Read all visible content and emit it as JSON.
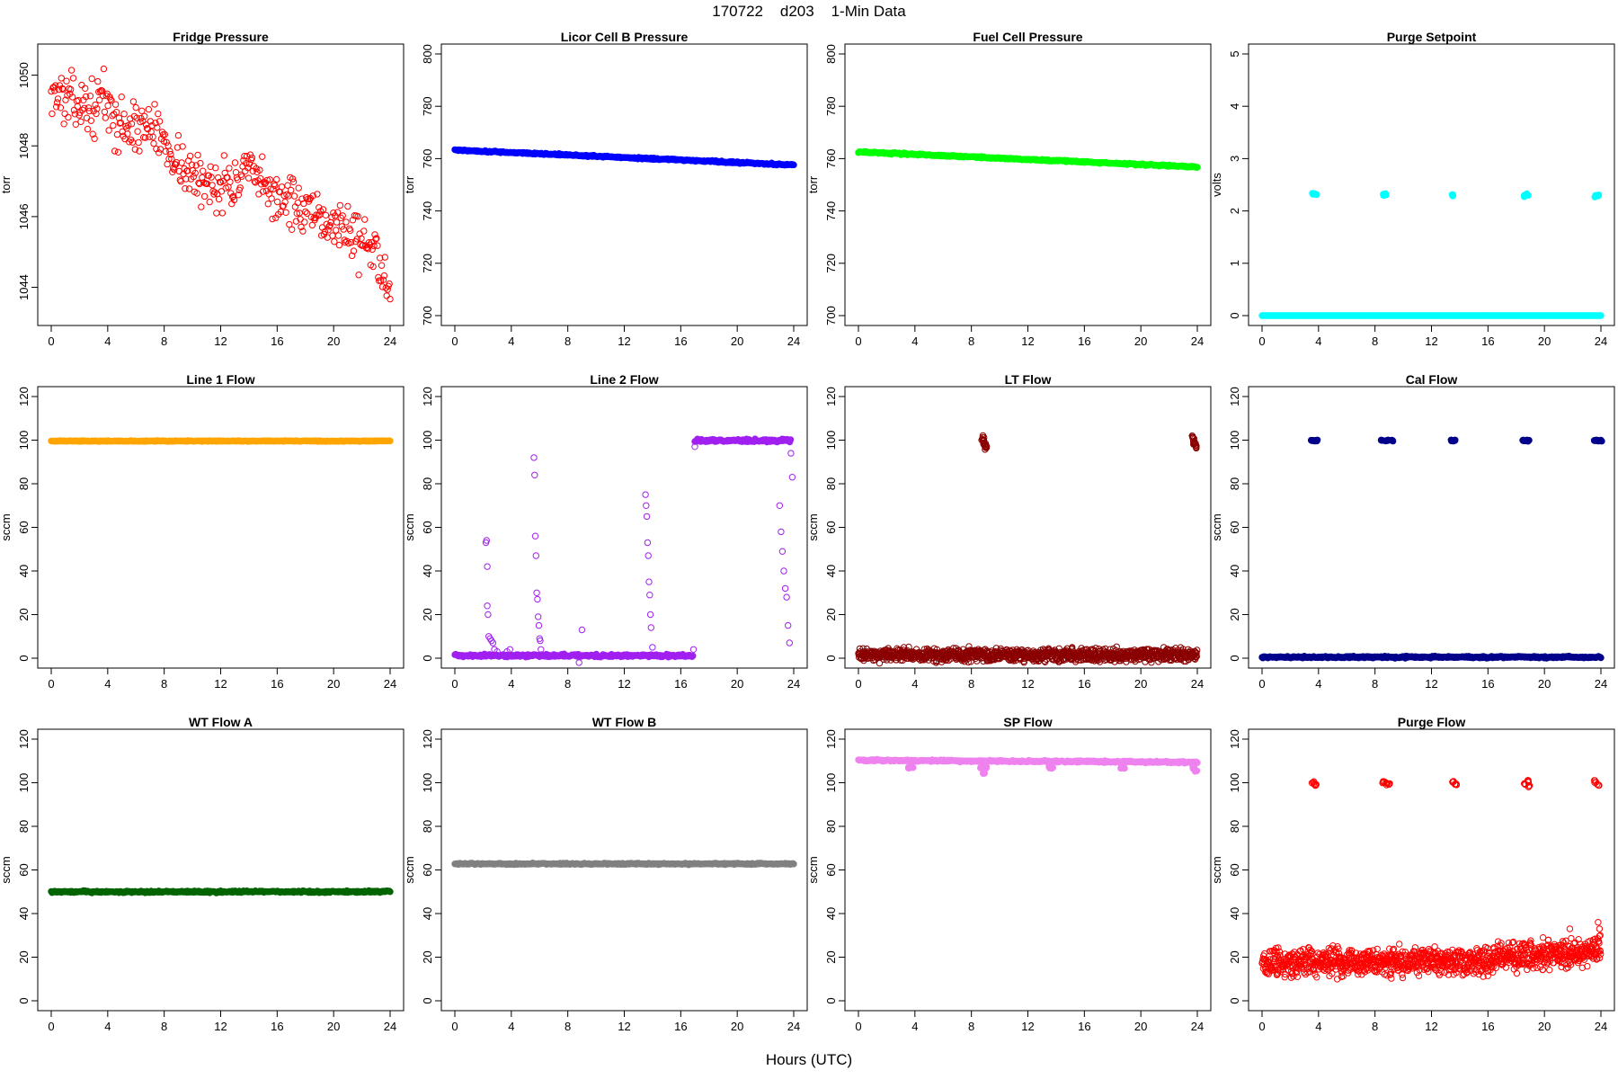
{
  "page": {
    "title": "170722    d203    1-Min Data",
    "x_axis_caption": "Hours (UTC)"
  },
  "chart_data": [
    {
      "type": "scatter",
      "title": "Fridge Pressure",
      "ylabel": "torr",
      "color": "#ff0000",
      "fill": false,
      "xlim": [
        0,
        24
      ],
      "ylim": [
        1043.2,
        1050.6
      ],
      "x_ticks": [
        0,
        4,
        8,
        12,
        16,
        20,
        24
      ],
      "y_ticks": [
        1044,
        1046,
        1048,
        1050
      ],
      "series": [
        {
          "kind": "trend",
          "noise": 0.35,
          "x": [
            0,
            1,
            2,
            3,
            3.8,
            4,
            5,
            6,
            7,
            8,
            9,
            10,
            11,
            12,
            13,
            14,
            15,
            16,
            17,
            18,
            19,
            20,
            21,
            22,
            23,
            24
          ],
          "y": [
            1049.6,
            1049.3,
            1049.2,
            1049.0,
            1049.6,
            1048.9,
            1048.6,
            1048.5,
            1048.6,
            1048.1,
            1047.6,
            1047.1,
            1046.9,
            1047.0,
            1046.9,
            1047.3,
            1046.8,
            1046.6,
            1046.4,
            1046.1,
            1045.8,
            1045.9,
            1045.6,
            1045.3,
            1044.9,
            1044.2
          ]
        }
      ]
    },
    {
      "type": "scatter",
      "title": "Licor Cell B Pressure",
      "ylabel": "torr",
      "color": "#0000ff",
      "fill": true,
      "xlim": [
        0,
        24
      ],
      "ylim": [
        700,
        800
      ],
      "x_ticks": [
        0,
        4,
        8,
        12,
        16,
        20,
        24
      ],
      "y_ticks": [
        700,
        720,
        740,
        760,
        780,
        800
      ],
      "series": [
        {
          "kind": "trend",
          "noise": 0.15,
          "x": [
            0,
            24
          ],
          "y": [
            763.3,
            757.6
          ]
        }
      ]
    },
    {
      "type": "scatter",
      "title": "Fuel Cell Pressure",
      "ylabel": "torr",
      "color": "#00ff00",
      "fill": true,
      "xlim": [
        0,
        24
      ],
      "ylim": [
        700,
        800
      ],
      "x_ticks": [
        0,
        4,
        8,
        12,
        16,
        20,
        24
      ],
      "y_ticks": [
        700,
        720,
        740,
        760,
        780,
        800
      ],
      "series": [
        {
          "kind": "trend",
          "noise": 0.15,
          "x": [
            0,
            24
          ],
          "y": [
            762.6,
            756.8
          ]
        }
      ]
    },
    {
      "type": "scatter",
      "title": "Purge Setpoint",
      "ylabel": "volts",
      "color": "#00ffff",
      "fill": true,
      "xlim": [
        0,
        24
      ],
      "ylim": [
        0,
        5
      ],
      "x_ticks": [
        0,
        4,
        8,
        12,
        16,
        20,
        24
      ],
      "y_ticks": [
        0,
        1,
        2,
        3,
        4,
        5
      ],
      "series": [
        {
          "kind": "trend",
          "noise": 0,
          "x": [
            0,
            24
          ],
          "y": [
            0,
            0
          ]
        },
        {
          "kind": "cluster",
          "spread": 0.02,
          "x": [
            3.6,
            3.8,
            8.6,
            8.8,
            13.5,
            18.6,
            18.8,
            23.6,
            23.8
          ],
          "y": [
            2.33,
            2.32,
            2.31,
            2.32,
            2.3,
            2.29,
            2.31,
            2.28,
            2.29
          ]
        }
      ]
    },
    {
      "type": "scatter",
      "title": "Line 1 Flow",
      "ylabel": "sccm",
      "color": "#ffa500",
      "fill": true,
      "xlim": [
        0,
        24
      ],
      "ylim": [
        0,
        120
      ],
      "x_ticks": [
        0,
        4,
        8,
        12,
        16,
        20,
        24
      ],
      "y_ticks": [
        0,
        20,
        40,
        60,
        80,
        100,
        120
      ],
      "series": [
        {
          "kind": "trend",
          "noise": 0.1,
          "x": [
            0,
            24
          ],
          "y": [
            99.6,
            99.6
          ]
        }
      ]
    },
    {
      "type": "scatter",
      "title": "Line 2 Flow",
      "ylabel": "sccm",
      "color": "#a020f0",
      "fill": false,
      "xlim": [
        0,
        24
      ],
      "ylim": [
        0,
        120
      ],
      "x_ticks": [
        0,
        4,
        8,
        12,
        16,
        20,
        24
      ],
      "y_ticks": [
        0,
        20,
        40,
        60,
        80,
        100,
        120
      ],
      "series": [
        {
          "kind": "trend",
          "noise": 0.3,
          "fill": true,
          "x": [
            0,
            16.9
          ],
          "y": [
            1.2,
            1.2
          ]
        },
        {
          "kind": "trend",
          "noise": 0.3,
          "fill": true,
          "x": [
            17.0,
            23.8
          ],
          "y": [
            99.8,
            99.8
          ]
        },
        {
          "kind": "points",
          "x": [
            2.2,
            2.25,
            2.3,
            2.3,
            2.35,
            2.4,
            2.5,
            2.6,
            2.7,
            2.8,
            3.0,
            3.7,
            3.9,
            5.6,
            5.65,
            5.7,
            5.75,
            5.8,
            5.85,
            5.9,
            5.95,
            6.0,
            6.05,
            6.1,
            8.8,
            9.0,
            13.5,
            13.55,
            13.6,
            13.65,
            13.7,
            13.75,
            13.8,
            13.85,
            13.9,
            14.0,
            16.9,
            17.0,
            23.0,
            23.1,
            23.2,
            23.3,
            23.4,
            23.5,
            23.6,
            23.7,
            23.8,
            23.9
          ],
          "y": [
            53,
            54,
            42,
            24,
            20,
            10,
            9,
            8,
            7,
            4,
            3,
            3,
            4,
            92,
            84,
            56,
            47,
            30,
            27,
            19,
            15,
            9,
            8,
            4,
            -2,
            13,
            75,
            70,
            65,
            53,
            47,
            35,
            29,
            20,
            14,
            5,
            4,
            97,
            70,
            58,
            49,
            40,
            32,
            28,
            15,
            7,
            94,
            83
          ]
        }
      ]
    },
    {
      "type": "scatter",
      "title": "LT Flow",
      "ylabel": "sccm",
      "color": "#8b0000",
      "fill": false,
      "xlim": [
        0,
        24
      ],
      "ylim": [
        0,
        120
      ],
      "x_ticks": [
        0,
        4,
        8,
        12,
        16,
        20,
        24
      ],
      "y_ticks": [
        0,
        20,
        40,
        60,
        80,
        100,
        120
      ],
      "series": [
        {
          "kind": "trend",
          "noise": 1.4,
          "x": [
            0,
            24
          ],
          "y": [
            1.5,
            1.5
          ]
        },
        {
          "kind": "cluster",
          "spread": 1.5,
          "x": [
            8.8,
            8.9,
            9.0,
            8.85,
            9.05,
            23.7,
            23.8,
            23.9,
            23.75,
            23.85
          ],
          "y": [
            101,
            99,
            97,
            100,
            98,
            101,
            99,
            98,
            100,
            97
          ]
        }
      ]
    },
    {
      "type": "scatter",
      "title": "Cal Flow",
      "ylabel": "sccm",
      "color": "#00008b",
      "fill": true,
      "xlim": [
        0,
        24
      ],
      "ylim": [
        0,
        120
      ],
      "x_ticks": [
        0,
        4,
        8,
        12,
        16,
        20,
        24
      ],
      "y_ticks": [
        0,
        20,
        40,
        60,
        80,
        100,
        120
      ],
      "series": [
        {
          "kind": "trend",
          "noise": 0.2,
          "x": [
            0,
            24
          ],
          "y": [
            0.5,
            0.5
          ]
        },
        {
          "kind": "cluster",
          "spread": 0.3,
          "x": [
            3.5,
            3.7,
            3.9,
            8.5,
            8.7,
            8.9,
            9.2,
            13.4,
            13.6,
            18.5,
            18.7,
            18.9,
            23.6,
            23.8,
            24.0
          ],
          "y": [
            99.8,
            99.8,
            99.8,
            99.8,
            99.8,
            99.8,
            99.8,
            99.8,
            99.8,
            99.8,
            99.8,
            99.8,
            99.8,
            99.8,
            99.8
          ]
        }
      ]
    },
    {
      "type": "scatter",
      "title": "WT Flow A",
      "ylabel": "sccm",
      "color": "#006400",
      "fill": true,
      "xlim": [
        0,
        24
      ],
      "ylim": [
        0,
        120
      ],
      "x_ticks": [
        0,
        4,
        8,
        12,
        16,
        20,
        24
      ],
      "y_ticks": [
        0,
        20,
        40,
        60,
        80,
        100,
        120
      ],
      "series": [
        {
          "kind": "trend",
          "noise": 0.2,
          "x": [
            0,
            24
          ],
          "y": [
            50,
            50
          ]
        }
      ]
    },
    {
      "type": "scatter",
      "title": "WT Flow B",
      "ylabel": "sccm",
      "color": "#808080",
      "fill": true,
      "xlim": [
        0,
        24
      ],
      "ylim": [
        0,
        120
      ],
      "x_ticks": [
        0,
        4,
        8,
        12,
        16,
        20,
        24
      ],
      "y_ticks": [
        0,
        20,
        40,
        60,
        80,
        100,
        120
      ],
      "series": [
        {
          "kind": "trend",
          "noise": 0.15,
          "x": [
            0,
            24
          ],
          "y": [
            62.8,
            62.8
          ]
        }
      ]
    },
    {
      "type": "scatter",
      "title": "SP Flow",
      "ylabel": "sccm",
      "color": "#ee82ee",
      "fill": true,
      "xlim": [
        0,
        24
      ],
      "ylim": [
        0,
        120
      ],
      "x_ticks": [
        0,
        4,
        8,
        12,
        16,
        20,
        24
      ],
      "y_ticks": [
        0,
        20,
        40,
        60,
        80,
        100,
        120
      ],
      "series": [
        {
          "kind": "trend",
          "noise": 0.2,
          "x": [
            0,
            24
          ],
          "y": [
            110.3,
            109.4
          ]
        },
        {
          "kind": "cluster",
          "spread": 0.4,
          "x": [
            3.6,
            3.8,
            8.7,
            8.9,
            9.0,
            13.5,
            13.7,
            18.6,
            18.8,
            23.7,
            23.9
          ],
          "y": [
            107,
            107,
            107,
            104.5,
            107,
            107,
            107,
            107,
            107,
            106.8,
            105.5
          ]
        }
      ]
    },
    {
      "type": "scatter",
      "title": "Purge Flow",
      "ylabel": "sccm",
      "color": "#ff0000",
      "fill": false,
      "xlim": [
        0,
        24
      ],
      "ylim": [
        0,
        120
      ],
      "x_ticks": [
        0,
        4,
        8,
        12,
        16,
        20,
        24
      ],
      "y_ticks": [
        0,
        20,
        40,
        60,
        80,
        100,
        120
      ],
      "series": [
        {
          "kind": "trend",
          "noise": 3.2,
          "x": [
            0,
            4,
            8,
            12,
            16,
            17,
            20,
            22,
            24
          ],
          "y": [
            17,
            18,
            18,
            18,
            18.5,
            21,
            21,
            21.5,
            23
          ]
        },
        {
          "kind": "points",
          "x": [
            23.8,
            23.9,
            23.95,
            21.8,
            19.9
          ],
          "y": [
            36,
            33,
            30,
            33,
            29
          ]
        },
        {
          "kind": "cluster",
          "spread": 0.6,
          "x": [
            3.6,
            3.8,
            8.6,
            8.8,
            9.0,
            13.5,
            13.7,
            18.6,
            18.8,
            18.9,
            23.6,
            23.8
          ],
          "y": [
            100,
            99.3,
            100,
            99.5,
            99.6,
            100.5,
            99,
            99,
            100.5,
            98.5,
            100.5,
            99.2
          ]
        }
      ]
    }
  ]
}
